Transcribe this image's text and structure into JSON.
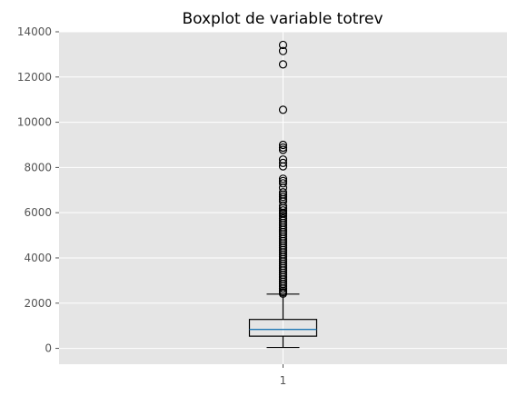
{
  "chart_data": {
    "type": "boxplot",
    "title": "Boxplot de variable totrev",
    "xlabel": "",
    "ylabel": "",
    "categories": [
      "1"
    ],
    "ylim": [
      -700,
      14000
    ],
    "yticks": [
      0,
      2000,
      4000,
      6000,
      8000,
      10000,
      12000,
      14000
    ],
    "grid": true,
    "style": "ggplot",
    "colors": {
      "background": "#e5e5e5",
      "grid": "#ffffff",
      "box": "#000000",
      "median": "#1f77b4"
    },
    "box": {
      "whisker_low": 40,
      "q1": 540,
      "median": 840,
      "q3": 1280,
      "whisker_high": 2400
    },
    "outliers": [
      13420,
      13150,
      12560,
      10550,
      9000,
      8880,
      8780,
      8350,
      8200,
      8050,
      7500,
      7400,
      7300,
      7100,
      6900,
      6800,
      6700,
      6600,
      6500,
      6300,
      6200,
      6100,
      6000,
      5950,
      5850,
      5750,
      5650,
      5550,
      5450,
      5350,
      5250,
      5150,
      5050,
      4950,
      4850,
      4750,
      4650,
      4550,
      4450,
      4350,
      4250,
      4150,
      4050,
      3950,
      3850,
      3750,
      3650,
      3550,
      3450,
      3350,
      3250,
      3150,
      3050,
      2950,
      2850,
      2750,
      2650,
      2550,
      2480,
      2420
    ]
  }
}
